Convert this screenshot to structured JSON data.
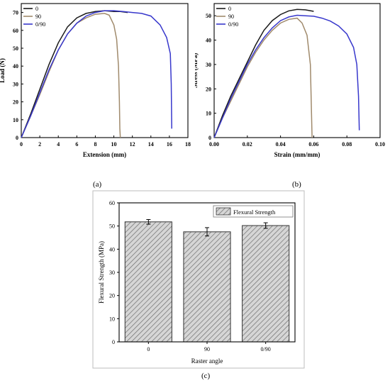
{
  "chart_data": [
    {
      "id": "a",
      "type": "line",
      "caption": "(a)",
      "xlabel": "Extension (mm)",
      "ylabel": "Load (N)",
      "xlim": [
        0,
        18
      ],
      "ylim": [
        0,
        75
      ],
      "xticks": [
        0,
        2,
        4,
        6,
        8,
        10,
        12,
        14,
        16,
        18
      ],
      "yticks": [
        0,
        10,
        20,
        30,
        40,
        50,
        60,
        70
      ],
      "legend_position": "top-left",
      "series": [
        {
          "name": "0",
          "color": "#1a1a1a",
          "points": [
            [
              0,
              0
            ],
            [
              1,
              13
            ],
            [
              2,
              27
            ],
            [
              3,
              41
            ],
            [
              4,
              53
            ],
            [
              5,
              62
            ],
            [
              6,
              67
            ],
            [
              7,
              69.5
            ],
            [
              8,
              70.5
            ],
            [
              9,
              71
            ],
            [
              10,
              70.5
            ],
            [
              10.7,
              70.5
            ],
            [
              11.5,
              70
            ]
          ]
        },
        {
          "name": "90",
          "color": "#a08a6c",
          "points": [
            [
              0,
              0
            ],
            [
              1,
              12
            ],
            [
              2,
              24
            ],
            [
              3,
              37
            ],
            [
              4,
              49
            ],
            [
              5,
              58
            ],
            [
              6,
              64
            ],
            [
              7,
              67
            ],
            [
              8,
              69
            ],
            [
              9,
              69.5
            ],
            [
              9.5,
              68.5
            ],
            [
              10,
              63
            ],
            [
              10.3,
              55
            ],
            [
              10.5,
              40
            ],
            [
              10.6,
              20
            ],
            [
              10.65,
              5
            ],
            [
              10.7,
              0
            ]
          ]
        },
        {
          "name": "0/90",
          "color": "#3838cc",
          "points": [
            [
              0,
              0
            ],
            [
              1,
              12
            ],
            [
              2,
              25
            ],
            [
              3,
              38
            ],
            [
              4,
              49
            ],
            [
              5,
              58
            ],
            [
              6,
              64
            ],
            [
              7,
              68
            ],
            [
              8,
              70
            ],
            [
              9,
              71
            ],
            [
              10,
              71
            ],
            [
              11,
              70.5
            ],
            [
              12,
              70
            ],
            [
              13,
              69.5
            ],
            [
              14,
              68
            ],
            [
              15,
              63
            ],
            [
              15.7,
              56
            ],
            [
              16.1,
              47
            ],
            [
              16.2,
              30
            ],
            [
              16.25,
              5
            ]
          ]
        }
      ]
    },
    {
      "id": "b",
      "type": "line",
      "caption": "(b)",
      "xlabel": "Strain (mm/mm)",
      "ylabel": "Stress (MPa)",
      "xlim": [
        0,
        0.1
      ],
      "ylim": [
        0,
        55
      ],
      "xticks": [
        "0.00",
        "0.02",
        "0.04",
        "0.06",
        "0.08",
        "0.10"
      ],
      "yticks": [
        0,
        10,
        20,
        30,
        40,
        50
      ],
      "legend_position": "top-left",
      "series": [
        {
          "name": "0",
          "color": "#1a1a1a",
          "points": [
            [
              0,
              0
            ],
            [
              0.005,
              9
            ],
            [
              0.01,
              17
            ],
            [
              0.015,
              24
            ],
            [
              0.02,
              31
            ],
            [
              0.025,
              38
            ],
            [
              0.03,
              44
            ],
            [
              0.035,
              48
            ],
            [
              0.04,
              50.5
            ],
            [
              0.045,
              52
            ],
            [
              0.05,
              52.6
            ],
            [
              0.055,
              52.4
            ],
            [
              0.06,
              51.8
            ]
          ]
        },
        {
          "name": "90",
          "color": "#a08a6c",
          "points": [
            [
              0,
              0
            ],
            [
              0.005,
              8
            ],
            [
              0.01,
              15
            ],
            [
              0.015,
              22
            ],
            [
              0.02,
              29
            ],
            [
              0.025,
              35
            ],
            [
              0.03,
              40
            ],
            [
              0.035,
              44
            ],
            [
              0.04,
              47
            ],
            [
              0.045,
              48.5
            ],
            [
              0.05,
              49
            ],
            [
              0.053,
              47
            ],
            [
              0.056,
              42
            ],
            [
              0.058,
              30
            ],
            [
              0.0585,
              15
            ],
            [
              0.059,
              0
            ]
          ]
        },
        {
          "name": "0/90",
          "color": "#3838cc",
          "points": [
            [
              0,
              0
            ],
            [
              0.005,
              8
            ],
            [
              0.01,
              16
            ],
            [
              0.015,
              23
            ],
            [
              0.02,
              30
            ],
            [
              0.025,
              36
            ],
            [
              0.03,
              41
            ],
            [
              0.035,
              45
            ],
            [
              0.04,
              48
            ],
            [
              0.045,
              49.5
            ],
            [
              0.05,
              50.2
            ],
            [
              0.055,
              50
            ],
            [
              0.06,
              49.8
            ],
            [
              0.065,
              49
            ],
            [
              0.07,
              47.8
            ],
            [
              0.075,
              45.8
            ],
            [
              0.08,
              42.5
            ],
            [
              0.084,
              37
            ],
            [
              0.086,
              30
            ],
            [
              0.087,
              17
            ],
            [
              0.0875,
              3
            ]
          ]
        }
      ]
    },
    {
      "id": "c",
      "type": "bar",
      "caption": "(c)",
      "xlabel": "Raster angle",
      "ylabel": "Flexural Strength (MPa)",
      "ylim": [
        0,
        60
      ],
      "yticks": [
        0,
        10,
        20,
        30,
        40,
        50,
        60
      ],
      "categories": [
        "0",
        "90",
        "0/90"
      ],
      "values": [
        51.8,
        47.5,
        50.2
      ],
      "errors": [
        1.0,
        1.8,
        1.2
      ],
      "legend": [
        "Flexural Strength"
      ],
      "legend_position": "top-right",
      "bar_color": "#cfcfcf"
    }
  ]
}
